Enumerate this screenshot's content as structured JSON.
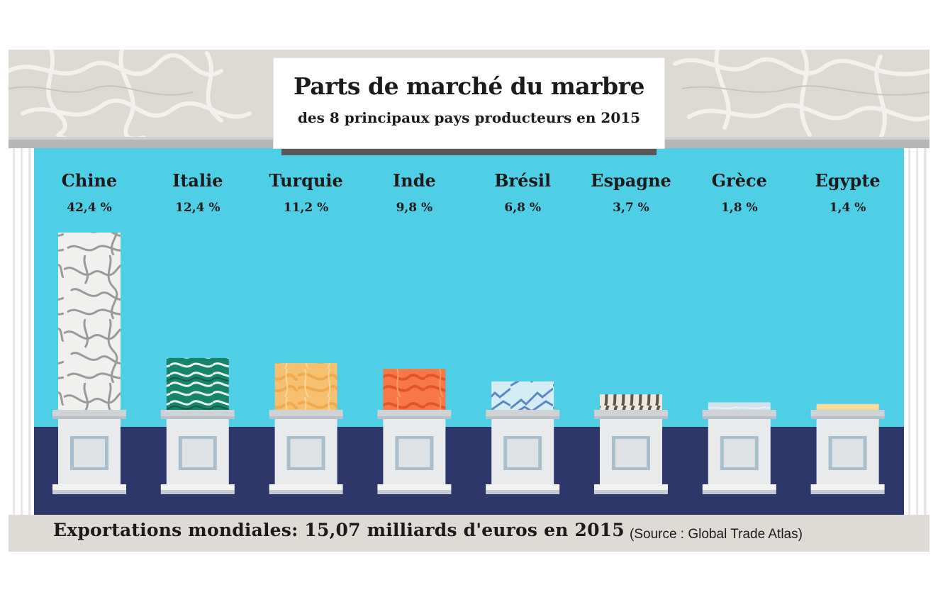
{
  "title": "Parts de marché du marbre",
  "subtitle": "des 8 principaux pays producteurs en 2015",
  "footer": {
    "main": "Exportations mondiales: 15,07 milliards d'euros en 2015",
    "source": "(Source : Global Trade Atlas)"
  },
  "colors": {
    "wall": "#4fcfe5",
    "floor": "#2e376a",
    "frieze": "#ddd9d3",
    "pedestal": "#e9eaeb"
  },
  "chart_data": {
    "type": "bar",
    "title": "Parts de marché du marbre",
    "subtitle": "des 8 principaux pays producteurs en 2015",
    "categories": [
      "Chine",
      "Italie",
      "Turquie",
      "Inde",
      "Brésil",
      "Espagne",
      "Grèce",
      "Egypte"
    ],
    "values": [
      42.4,
      12.4,
      11.2,
      9.8,
      6.8,
      3.7,
      1.8,
      1.4
    ],
    "value_labels": [
      "42,4 %",
      "12,4 %",
      "11,2 %",
      "9,8 %",
      "6,8 %",
      "3,7 %",
      "1,8 %",
      "1,4 %"
    ],
    "unit": "%",
    "marble_styles": [
      "grey-veined white",
      "green veined",
      "orange-beige",
      "orange-red",
      "light blue veined",
      "black-white striped",
      "light blue-grey",
      "cream"
    ],
    "bar_colors": [
      "#f0f0ee",
      "#16846a",
      "#f7c070",
      "#f77846",
      "#d4ecf4",
      "#6f645c",
      "#cfe3ef",
      "#f6dc98"
    ]
  }
}
